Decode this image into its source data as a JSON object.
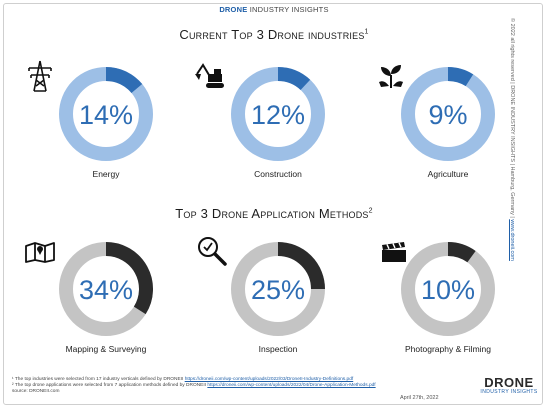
{
  "header": {
    "brand_accent": "DRONE",
    "brand_rest": " INDUSTRY INSIGHTS"
  },
  "section1": {
    "title_cap": "Current Top 3 Drone industries",
    "title_sup": "1"
  },
  "section2": {
    "title_cap": "Top 3 Drone Application Methods",
    "title_sup": "2"
  },
  "chart_data": [
    {
      "type": "pie",
      "title": "Current Top 3 Drone industries",
      "categories": [
        "Energy",
        "Construction",
        "Agriculture"
      ],
      "values": [
        14,
        12,
        9
      ],
      "labels": [
        "14%",
        "12%",
        "9%"
      ],
      "icons": [
        "power-tower-icon",
        "excavator-icon",
        "plant-icon"
      ],
      "colors": {
        "highlight": "#2e6db4",
        "remainder": "#9dbfe6",
        "text": "#2e6db4"
      }
    },
    {
      "type": "pie",
      "title": "Top 3 Drone Application Methods",
      "categories": [
        "Mapping & Surveying",
        "Inspection",
        "Photography & Filming"
      ],
      "values": [
        34,
        25,
        10
      ],
      "labels": [
        "34%",
        "25%",
        "10%"
      ],
      "icons": [
        "map-icon",
        "magnifier-icon",
        "clapperboard-icon"
      ],
      "colors": {
        "highlight": "#2b2b2b",
        "remainder": "#c4c4c4",
        "text": "#2e6db4"
      }
    }
  ],
  "footnotes": {
    "note1_text": "¹ The top industries were selected from 17 industry verticals defined by DRONEII ",
    "note1_link": "https://droneii.com/wp-content/uploads/2022/03/DroneII-Industry-Definitions.pdf",
    "note2_text": "² The top drone applications were selected from 7 application methods defined by DRONEII ",
    "note2_link": "https://droneii.com/wp-content/uploads/2022/04/Drone-Application-Methods.pdf",
    "source": "source: DRONEII.com"
  },
  "date": "April 27th, 2022",
  "logo": {
    "big": "DRONE",
    "small": "INDUSTRY INSIGHTS"
  },
  "side_note": {
    "text": "© 2022 all rights reserved  |  DRONE INDUSTRY INSIGHTS  |  Hamburg, Germany  |  ",
    "link": "www.droneii.com"
  }
}
